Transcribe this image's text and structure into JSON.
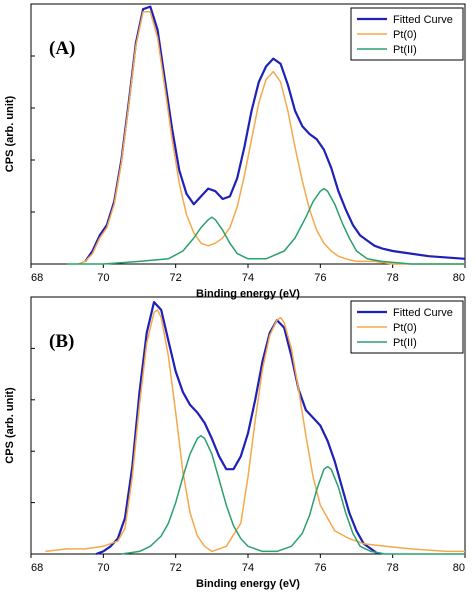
{
  "chart_data": [
    {
      "type": "line",
      "panel_label": "(A)",
      "xlabel": "Binding energy (eV)",
      "ylabel": "CPS (arb. unit)",
      "xlim": [
        68,
        80
      ],
      "x_ticks": [
        "68",
        "70",
        "72",
        "74",
        "76",
        "78",
        "80"
      ],
      "ylim": [
        0,
        1
      ],
      "y_tick_values": [
        0,
        0.2,
        0.4,
        0.6,
        0.8,
        1.0
      ],
      "y_tick_labels_shown": false,
      "grid": false,
      "legend_position": "top-right",
      "series": [
        {
          "name": "Fitted Curve",
          "color": "#1f20b8",
          "width": 2.2,
          "x": [
            69.5,
            69.7,
            69.9,
            70.1,
            70.3,
            70.5,
            70.7,
            70.9,
            71.1,
            71.3,
            71.5,
            71.7,
            71.9,
            72.1,
            72.3,
            72.5,
            72.7,
            72.9,
            73.1,
            73.3,
            73.5,
            73.7,
            73.9,
            74.1,
            74.3,
            74.5,
            74.7,
            74.9,
            75.1,
            75.3,
            75.5,
            75.7,
            75.9,
            76.1,
            76.3,
            76.5,
            76.7,
            76.9,
            77.1,
            77.3,
            77.5,
            77.7,
            78.0,
            78.5,
            79.0,
            80.0
          ],
          "y": [
            0.01,
            0.05,
            0.11,
            0.15,
            0.24,
            0.4,
            0.62,
            0.85,
            0.98,
            0.99,
            0.9,
            0.71,
            0.52,
            0.36,
            0.27,
            0.23,
            0.26,
            0.29,
            0.28,
            0.25,
            0.26,
            0.33,
            0.45,
            0.59,
            0.7,
            0.76,
            0.79,
            0.77,
            0.69,
            0.59,
            0.53,
            0.5,
            0.48,
            0.44,
            0.37,
            0.28,
            0.21,
            0.15,
            0.11,
            0.09,
            0.07,
            0.06,
            0.05,
            0.04,
            0.03,
            0.02
          ]
        },
        {
          "name": "Pt(0)",
          "color": "#f5a94a",
          "width": 1.5,
          "x": [
            69.3,
            69.5,
            69.7,
            69.9,
            70.1,
            70.3,
            70.5,
            70.7,
            70.9,
            71.1,
            71.3,
            71.5,
            71.7,
            71.9,
            72.1,
            72.3,
            72.5,
            72.7,
            72.9,
            73.1,
            73.3,
            73.5,
            73.7,
            73.9,
            74.1,
            74.3,
            74.5,
            74.7,
            74.9,
            75.1,
            75.3,
            75.5,
            75.7,
            75.9,
            76.1,
            76.3,
            76.5,
            76.7,
            77.0,
            77.5,
            78.0,
            79.0,
            80.0
          ],
          "y": [
            0.0,
            0.01,
            0.04,
            0.1,
            0.14,
            0.23,
            0.39,
            0.61,
            0.84,
            0.97,
            0.97,
            0.87,
            0.68,
            0.48,
            0.31,
            0.19,
            0.12,
            0.08,
            0.07,
            0.08,
            0.1,
            0.14,
            0.22,
            0.34,
            0.48,
            0.62,
            0.71,
            0.74,
            0.7,
            0.59,
            0.45,
            0.32,
            0.21,
            0.13,
            0.08,
            0.05,
            0.03,
            0.02,
            0.01,
            0.01,
            0.0,
            0.0,
            0.0
          ]
        },
        {
          "name": "Pt(II)",
          "color": "#2aa06d",
          "width": 1.5,
          "x": [
            69.0,
            70.0,
            71.0,
            71.8,
            72.2,
            72.5,
            72.7,
            72.9,
            73.0,
            73.1,
            73.3,
            73.5,
            73.7,
            74.0,
            74.5,
            75.0,
            75.3,
            75.6,
            75.8,
            76.0,
            76.1,
            76.2,
            76.4,
            76.6,
            76.8,
            77.0,
            77.3,
            77.7,
            78.5,
            80.0
          ],
          "y": [
            0.0,
            0.0,
            0.01,
            0.02,
            0.05,
            0.1,
            0.14,
            0.17,
            0.18,
            0.17,
            0.13,
            0.08,
            0.04,
            0.02,
            0.02,
            0.05,
            0.1,
            0.18,
            0.24,
            0.28,
            0.29,
            0.28,
            0.23,
            0.16,
            0.1,
            0.05,
            0.02,
            0.01,
            0.0,
            0.0
          ]
        }
      ]
    },
    {
      "type": "line",
      "panel_label": "(B)",
      "xlabel": "Binding energy (eV)",
      "ylabel": "CPS (arb. unit)",
      "xlim": [
        68,
        80
      ],
      "x_ticks": [
        "68",
        "70",
        "72",
        "74",
        "76",
        "78",
        "80"
      ],
      "ylim": [
        0,
        1
      ],
      "y_tick_values": [
        0,
        0.2,
        0.4,
        0.6,
        0.8,
        1.0
      ],
      "y_tick_labels_shown": false,
      "grid": false,
      "legend_position": "top-right",
      "series": [
        {
          "name": "Fitted Curve",
          "color": "#1f20b8",
          "width": 2.2,
          "x": [
            69.8,
            70.0,
            70.2,
            70.4,
            70.6,
            70.8,
            71.0,
            71.2,
            71.4,
            71.6,
            71.8,
            72.0,
            72.2,
            72.4,
            72.6,
            72.8,
            73.0,
            73.2,
            73.4,
            73.6,
            73.8,
            74.0,
            74.2,
            74.4,
            74.6,
            74.8,
            75.0,
            75.2,
            75.4,
            75.6,
            75.8,
            76.0,
            76.2,
            76.4,
            76.6,
            76.8,
            77.0,
            77.2,
            77.4,
            77.6
          ],
          "y": [
            0.0,
            0.01,
            0.03,
            0.06,
            0.14,
            0.34,
            0.63,
            0.86,
            0.98,
            0.95,
            0.83,
            0.71,
            0.63,
            0.58,
            0.55,
            0.51,
            0.45,
            0.38,
            0.33,
            0.33,
            0.38,
            0.47,
            0.6,
            0.75,
            0.86,
            0.91,
            0.88,
            0.77,
            0.64,
            0.56,
            0.53,
            0.5,
            0.44,
            0.36,
            0.26,
            0.16,
            0.09,
            0.04,
            0.02,
            0.0
          ]
        },
        {
          "name": "Pt(0)",
          "color": "#f5a94a",
          "width": 1.5,
          "x": [
            68.4,
            69.0,
            69.5,
            70.0,
            70.4,
            70.6,
            70.8,
            71.0,
            71.2,
            71.4,
            71.5,
            71.6,
            71.8,
            72.0,
            72.2,
            72.4,
            72.6,
            72.8,
            73.0,
            73.4,
            73.8,
            74.0,
            74.2,
            74.4,
            74.6,
            74.8,
            74.9,
            75.0,
            75.2,
            75.4,
            75.6,
            75.8,
            76.0,
            76.4,
            76.8,
            77.2,
            77.8,
            78.5,
            79.5,
            80.0
          ],
          "y": [
            0.01,
            0.02,
            0.02,
            0.03,
            0.05,
            0.1,
            0.3,
            0.58,
            0.82,
            0.94,
            0.95,
            0.92,
            0.77,
            0.55,
            0.32,
            0.16,
            0.07,
            0.03,
            0.01,
            0.03,
            0.12,
            0.3,
            0.52,
            0.72,
            0.85,
            0.91,
            0.92,
            0.9,
            0.8,
            0.64,
            0.46,
            0.3,
            0.19,
            0.09,
            0.06,
            0.04,
            0.03,
            0.02,
            0.01,
            0.01
          ]
        },
        {
          "name": "Pt(II)",
          "color": "#2aa06d",
          "width": 1.5,
          "x": [
            70.5,
            71.0,
            71.3,
            71.6,
            71.8,
            72.0,
            72.2,
            72.4,
            72.6,
            72.7,
            72.8,
            73.0,
            73.2,
            73.4,
            73.6,
            73.8,
            74.0,
            74.4,
            74.8,
            75.2,
            75.5,
            75.7,
            75.9,
            76.1,
            76.2,
            76.3,
            76.5,
            76.7,
            76.9,
            77.1,
            77.4,
            77.8,
            78.5,
            80.0
          ],
          "y": [
            0.0,
            0.01,
            0.03,
            0.07,
            0.12,
            0.2,
            0.3,
            0.39,
            0.45,
            0.46,
            0.45,
            0.39,
            0.29,
            0.19,
            0.11,
            0.06,
            0.03,
            0.01,
            0.01,
            0.03,
            0.08,
            0.15,
            0.25,
            0.33,
            0.34,
            0.33,
            0.26,
            0.16,
            0.08,
            0.03,
            0.01,
            0.0,
            0.0,
            0.0
          ]
        }
      ]
    }
  ]
}
